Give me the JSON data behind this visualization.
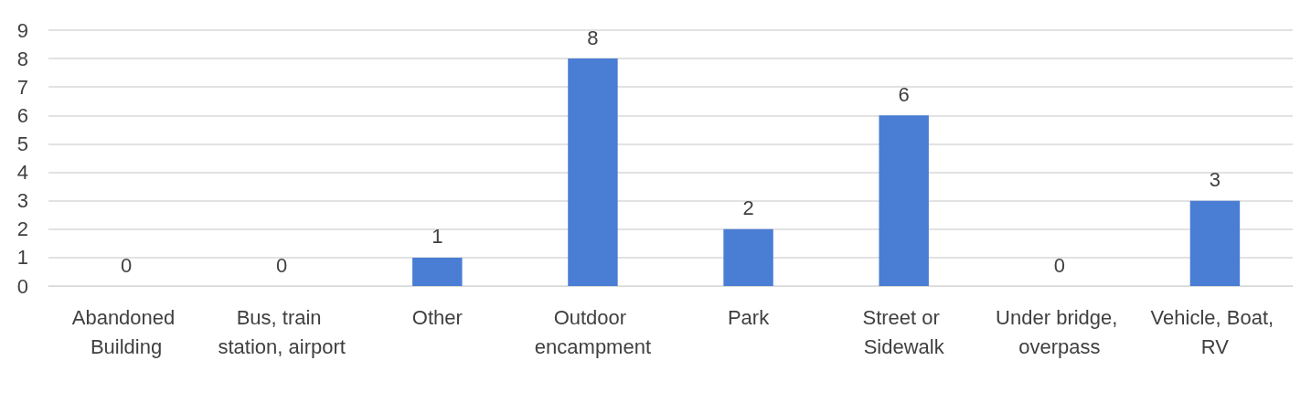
{
  "chart_data": {
    "type": "bar",
    "categories": [
      "Abandoned Building",
      "Bus, train station, airport",
      "Other",
      "Outdoor encampment",
      "Park",
      "Street or Sidewalk",
      "Under bridge, overpass",
      "Vehicle, Boat, RV"
    ],
    "values": [
      0,
      0,
      1,
      8,
      2,
      6,
      0,
      3
    ],
    "color": "#4a7dd4",
    "ylim": [
      0,
      9
    ],
    "yticks": [
      0,
      1,
      2,
      3,
      4,
      5,
      6,
      7,
      8,
      9
    ],
    "grid": "y",
    "data_labels": true
  }
}
